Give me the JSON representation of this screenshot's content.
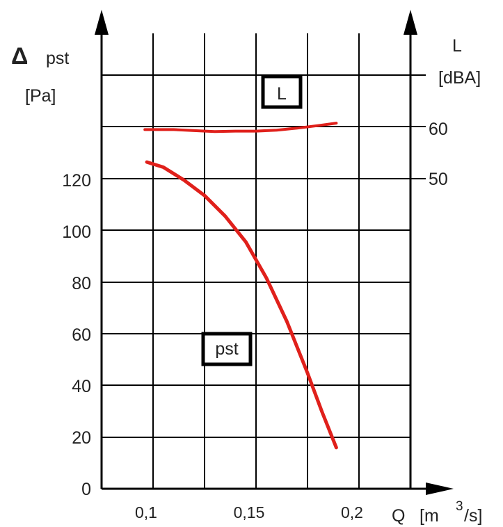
{
  "chart_data": {
    "type": "line",
    "x_axis": {
      "label": "Q",
      "unit_prefix": "[m",
      "unit_sup": "3",
      "unit_suffix": "/s]",
      "ticks": [
        "0,1",
        "0,15",
        "0,2"
      ],
      "tick_values": [
        0.1,
        0.15,
        0.2
      ],
      "range": [
        0.05,
        0.25
      ]
    },
    "y_left": {
      "symbol": "Δ",
      "label": "pst",
      "unit": "[Pa]",
      "ticks": [
        "0",
        "20",
        "40",
        "60",
        "80",
        "100",
        "120"
      ],
      "tick_values": [
        0,
        20,
        40,
        60,
        80,
        100,
        120
      ],
      "range": [
        0,
        160
      ]
    },
    "y_right": {
      "label": "L",
      "unit": "[dBA]",
      "ticks": [
        "50",
        "60"
      ],
      "tick_values": [
        50,
        60
      ]
    },
    "grid": true,
    "series": [
      {
        "name": "L",
        "axis": "right",
        "color": "#e0201b",
        "points": [
          [
            0.096,
            59.8
          ],
          [
            0.11,
            59.8
          ],
          [
            0.12,
            59.6
          ],
          [
            0.13,
            59.4
          ],
          [
            0.14,
            59.5
          ],
          [
            0.15,
            59.5
          ],
          [
            0.16,
            59.7
          ],
          [
            0.17,
            60.1
          ],
          [
            0.18,
            60.6
          ],
          [
            0.189,
            61.1
          ]
        ]
      },
      {
        "name": "pst",
        "axis": "left",
        "color": "#e0201b",
        "points": [
          [
            0.097,
            127
          ],
          [
            0.105,
            125
          ],
          [
            0.115,
            120
          ],
          [
            0.125,
            114
          ],
          [
            0.135,
            106
          ],
          [
            0.145,
            96
          ],
          [
            0.155,
            82
          ],
          [
            0.165,
            65
          ],
          [
            0.175,
            45
          ],
          [
            0.182,
            30
          ],
          [
            0.189,
            16
          ]
        ]
      }
    ]
  }
}
